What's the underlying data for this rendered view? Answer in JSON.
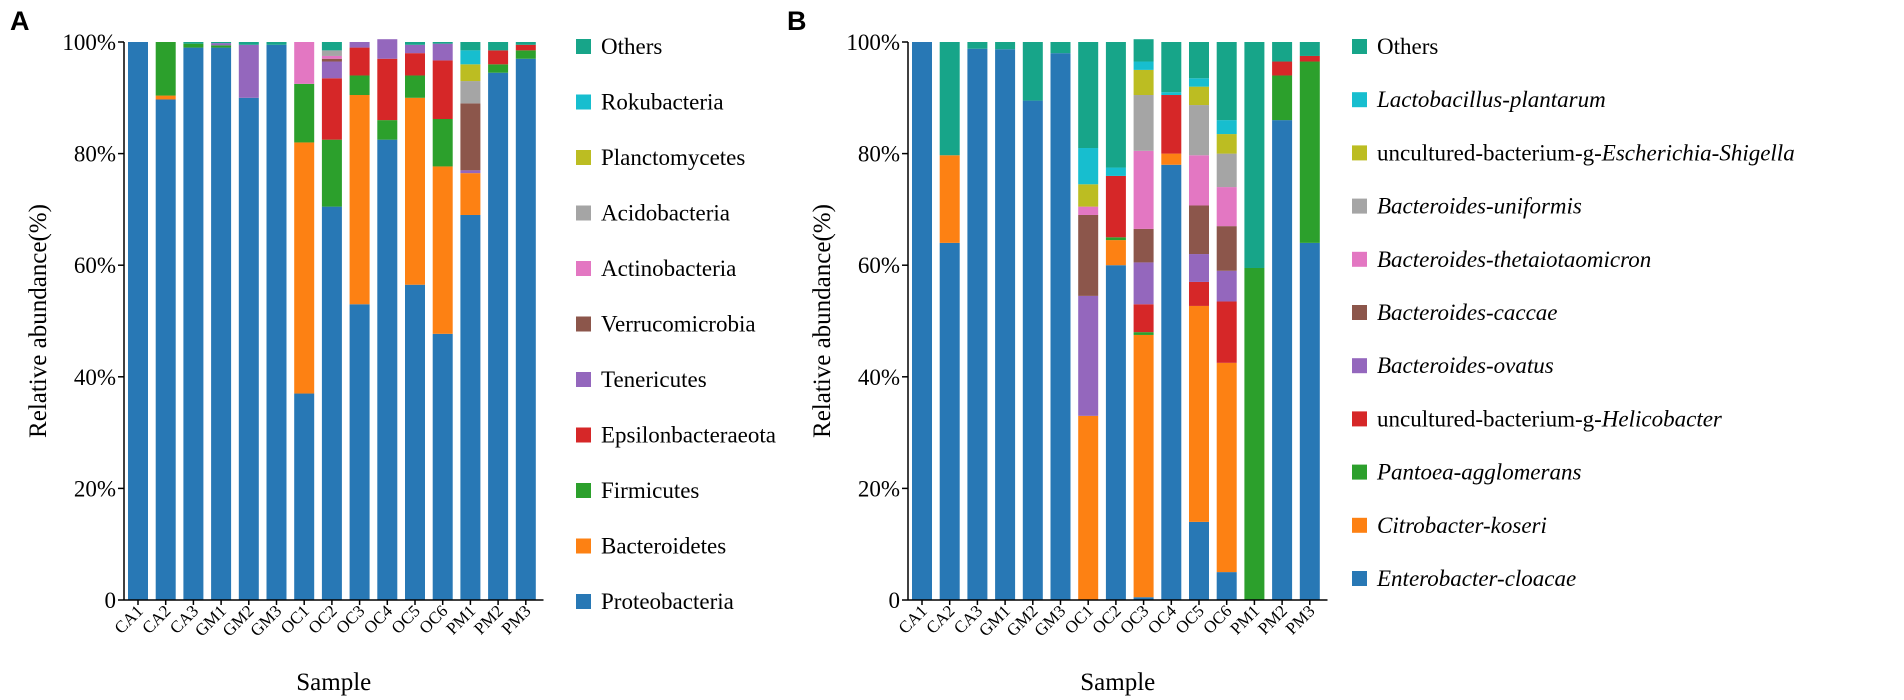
{
  "colors": {
    "blue": "#2878b5",
    "orange": "#fd8113",
    "green": "#2ca02c",
    "red": "#d62728",
    "purple": "#9467bd",
    "brown": "#8c564b",
    "pink": "#e377c2",
    "gray": "#a5a5a5",
    "olive": "#bcbd22",
    "cyan": "#17becf",
    "teal": "#17a589"
  },
  "chart_data": [
    {
      "panel": "A",
      "type": "bar",
      "stacked": true,
      "xlabel": "Sample",
      "ylabel": "Relative abundance(%)",
      "ylim": [
        0,
        100
      ],
      "yticks": [
        "0",
        "20%",
        "40%",
        "60%",
        "80%",
        "100%"
      ],
      "legend_position": "right",
      "categories": [
        "CA1",
        "CA2",
        "CA3",
        "GM1",
        "GM2",
        "GM3",
        "OC1",
        "OC2",
        "OC3",
        "OC4",
        "OC5",
        "OC6",
        "PM1",
        "PM2",
        "PM3"
      ],
      "series": [
        {
          "name": "Proteobacteria",
          "color": "blue",
          "values": [
            100,
            89.7,
            99,
            99,
            90,
            99.5,
            37,
            70.5,
            53,
            82.5,
            56.5,
            47.7,
            69,
            94.5,
            97
          ]
        },
        {
          "name": "Bacteroidetes",
          "color": "orange",
          "values": [
            0,
            0.7,
            0,
            0,
            0,
            0,
            45,
            0,
            37.5,
            0,
            33.5,
            30,
            7.5,
            0,
            0
          ]
        },
        {
          "name": "Firmicutes",
          "color": "green",
          "values": [
            0,
            9.6,
            0.7,
            0.4,
            0,
            0,
            10.5,
            12,
            3.5,
            3.5,
            4,
            8.5,
            0,
            1.5,
            1.5
          ]
        },
        {
          "name": "Epsilonbacteraeota",
          "color": "red",
          "values": [
            0,
            0,
            0,
            0,
            0,
            0,
            0,
            11,
            5,
            11,
            4,
            10.5,
            0,
            2.5,
            1
          ]
        },
        {
          "name": "Tenericutes",
          "color": "purple",
          "values": [
            0,
            0,
            0,
            0.4,
            9.5,
            0,
            0,
            3,
            1,
            3.5,
            1.5,
            3,
            0.5,
            0,
            0
          ]
        },
        {
          "name": "Verrucomicrobia",
          "color": "brown",
          "values": [
            0,
            0,
            0,
            0,
            0,
            0,
            0,
            0.5,
            0,
            0,
            0,
            0,
            12,
            0,
            0
          ]
        },
        {
          "name": "Actinobacteria",
          "color": "pink",
          "values": [
            0,
            0,
            0,
            0,
            0,
            0,
            7.5,
            0.5,
            0,
            0,
            0,
            0,
            0,
            0,
            0
          ]
        },
        {
          "name": "Acidobacteria",
          "color": "gray",
          "values": [
            0,
            0,
            0,
            0,
            0,
            0,
            0,
            1,
            0,
            0,
            0,
            0,
            4,
            0,
            0
          ]
        },
        {
          "name": "Planctomycetes",
          "color": "olive",
          "values": [
            0,
            0,
            0,
            0,
            0,
            0,
            0,
            0,
            0,
            0,
            0,
            0,
            3,
            0,
            0
          ]
        },
        {
          "name": "Rokubacteria",
          "color": "cyan",
          "values": [
            0,
            0,
            0,
            0,
            0,
            0,
            0,
            0,
            0,
            0,
            0,
            0,
            2.5,
            0,
            0
          ]
        },
        {
          "name": "Others",
          "color": "teal",
          "values": [
            0,
            0,
            0.3,
            0.2,
            0.5,
            0.5,
            0,
            1.5,
            0,
            0,
            0.5,
            0.3,
            1.5,
            1.5,
            0.5
          ]
        }
      ],
      "legend": [
        {
          "label": "Others",
          "color": "teal"
        },
        {
          "label": "Rokubacteria",
          "color": "cyan"
        },
        {
          "label": "Planctomycetes",
          "color": "olive"
        },
        {
          "label": "Acidobacteria",
          "color": "gray"
        },
        {
          "label": "Actinobacteria",
          "color": "pink"
        },
        {
          "label": "Verrucomicrobia",
          "color": "brown"
        },
        {
          "label": "Tenericutes",
          "color": "purple"
        },
        {
          "label": "Epsilonbacteraeota",
          "color": "red"
        },
        {
          "label": "Firmicutes",
          "color": "green"
        },
        {
          "label": "Bacteroidetes",
          "color": "orange"
        },
        {
          "label": "Proteobacteria",
          "color": "blue"
        }
      ]
    },
    {
      "panel": "B",
      "type": "bar",
      "stacked": true,
      "xlabel": "Sample",
      "ylabel": "Relative abundance(%)",
      "ylim": [
        0,
        100
      ],
      "yticks": [
        "0",
        "20%",
        "40%",
        "60%",
        "80%",
        "100%"
      ],
      "legend_position": "right",
      "categories": [
        "CA1",
        "CA2",
        "CA3",
        "GM1",
        "GM2",
        "GM3",
        "OC1",
        "OC2",
        "OC3",
        "OC4",
        "OC5",
        "OC6",
        "PM1",
        "PM2",
        "PM3"
      ],
      "series": [
        {
          "name": "Enterobacter-cloacae",
          "color": "blue",
          "values": [
            100,
            64,
            98.8,
            98.7,
            89.5,
            98,
            0,
            60,
            0.5,
            78,
            14,
            5,
            0,
            86,
            64
          ]
        },
        {
          "name": "Citrobacter-koseri",
          "color": "orange",
          "values": [
            0,
            15.7,
            0,
            0,
            0,
            0,
            33,
            4.5,
            47,
            2,
            38.7,
            37.5,
            0,
            0,
            0
          ]
        },
        {
          "name": "Pantoea-agglomerans",
          "color": "green",
          "values": [
            0,
            0,
            0,
            0,
            0,
            0,
            0,
            0.5,
            0.5,
            0,
            0,
            0,
            59.5,
            8,
            32.5
          ]
        },
        {
          "name": "uncultured-bacterium-g-Helicobacter",
          "color": "red",
          "values": [
            0,
            0,
            0,
            0,
            0,
            0,
            0,
            11,
            5,
            10.5,
            4.3,
            11,
            0,
            2.5,
            1
          ]
        },
        {
          "name": "Bacteroides-ovatus",
          "color": "purple",
          "values": [
            0,
            0,
            0,
            0,
            0,
            0,
            21.5,
            0,
            7.5,
            0,
            5,
            5.5,
            0,
            0,
            0
          ]
        },
        {
          "name": "Bacteroides-caccae",
          "color": "brown",
          "values": [
            0,
            0,
            0,
            0,
            0,
            0,
            14.5,
            0,
            6,
            0,
            8.7,
            8,
            0,
            0,
            0
          ]
        },
        {
          "name": "Bacteroides-thetaiotaomicron",
          "color": "pink",
          "values": [
            0,
            0,
            0,
            0,
            0,
            0,
            1.5,
            0,
            14,
            0,
            9,
            7,
            0,
            0,
            0
          ]
        },
        {
          "name": "Bacteroides-uniformis",
          "color": "gray",
          "values": [
            0,
            0,
            0,
            0,
            0,
            0,
            0,
            0,
            10,
            0,
            9,
            6,
            0,
            0,
            0
          ]
        },
        {
          "name": "uncultured-bacterium-g-Escherichia-Shigella",
          "color": "olive",
          "values": [
            0,
            0,
            0,
            0,
            0,
            0,
            4,
            0,
            4.5,
            0,
            3.3,
            3.5,
            0,
            0,
            0
          ]
        },
        {
          "name": "Lactobacillus-plantarum",
          "color": "cyan",
          "values": [
            0,
            0,
            0,
            0,
            0,
            0,
            6.5,
            1.5,
            1.5,
            0.5,
            1.5,
            2.5,
            0,
            0,
            0
          ]
        },
        {
          "name": "Others",
          "color": "teal",
          "values": [
            0,
            20.3,
            1.2,
            1.3,
            10.5,
            2,
            19,
            22.5,
            4,
            9,
            6.5,
            14,
            40.5,
            3.5,
            2.5
          ]
        }
      ],
      "legend": [
        {
          "color": "teal",
          "parts": [
            {
              "t": "Others",
              "i": false
            }
          ]
        },
        {
          "color": "cyan",
          "parts": [
            {
              "t": "Lactobacillus-plantarum",
              "i": true
            }
          ]
        },
        {
          "color": "olive",
          "parts": [
            {
              "t": "uncultured-bacterium-g-",
              "i": false
            },
            {
              "t": "Escherichia-Shigella",
              "i": true
            }
          ]
        },
        {
          "color": "gray",
          "parts": [
            {
              "t": "Bacteroides-uniformis",
              "i": true
            }
          ]
        },
        {
          "color": "pink",
          "parts": [
            {
              "t": "Bacteroides-thetaiotaomicron",
              "i": true
            }
          ]
        },
        {
          "color": "brown",
          "parts": [
            {
              "t": "Bacteroides-caccae",
              "i": true
            }
          ]
        },
        {
          "color": "purple",
          "parts": [
            {
              "t": "Bacteroides-ovatus",
              "i": true
            }
          ]
        },
        {
          "color": "red",
          "parts": [
            {
              "t": "uncultured-bacterium-g-",
              "i": false
            },
            {
              "t": "Helicobacter",
              "i": true
            }
          ]
        },
        {
          "color": "green",
          "parts": [
            {
              "t": "Pantoea-agglomerans",
              "i": true
            }
          ]
        },
        {
          "color": "orange",
          "parts": [
            {
              "t": "Citrobacter-koseri",
              "i": true
            }
          ]
        },
        {
          "color": "blue",
          "parts": [
            {
              "t": "Enterobacter-cloacae",
              "i": true
            }
          ]
        }
      ]
    }
  ]
}
